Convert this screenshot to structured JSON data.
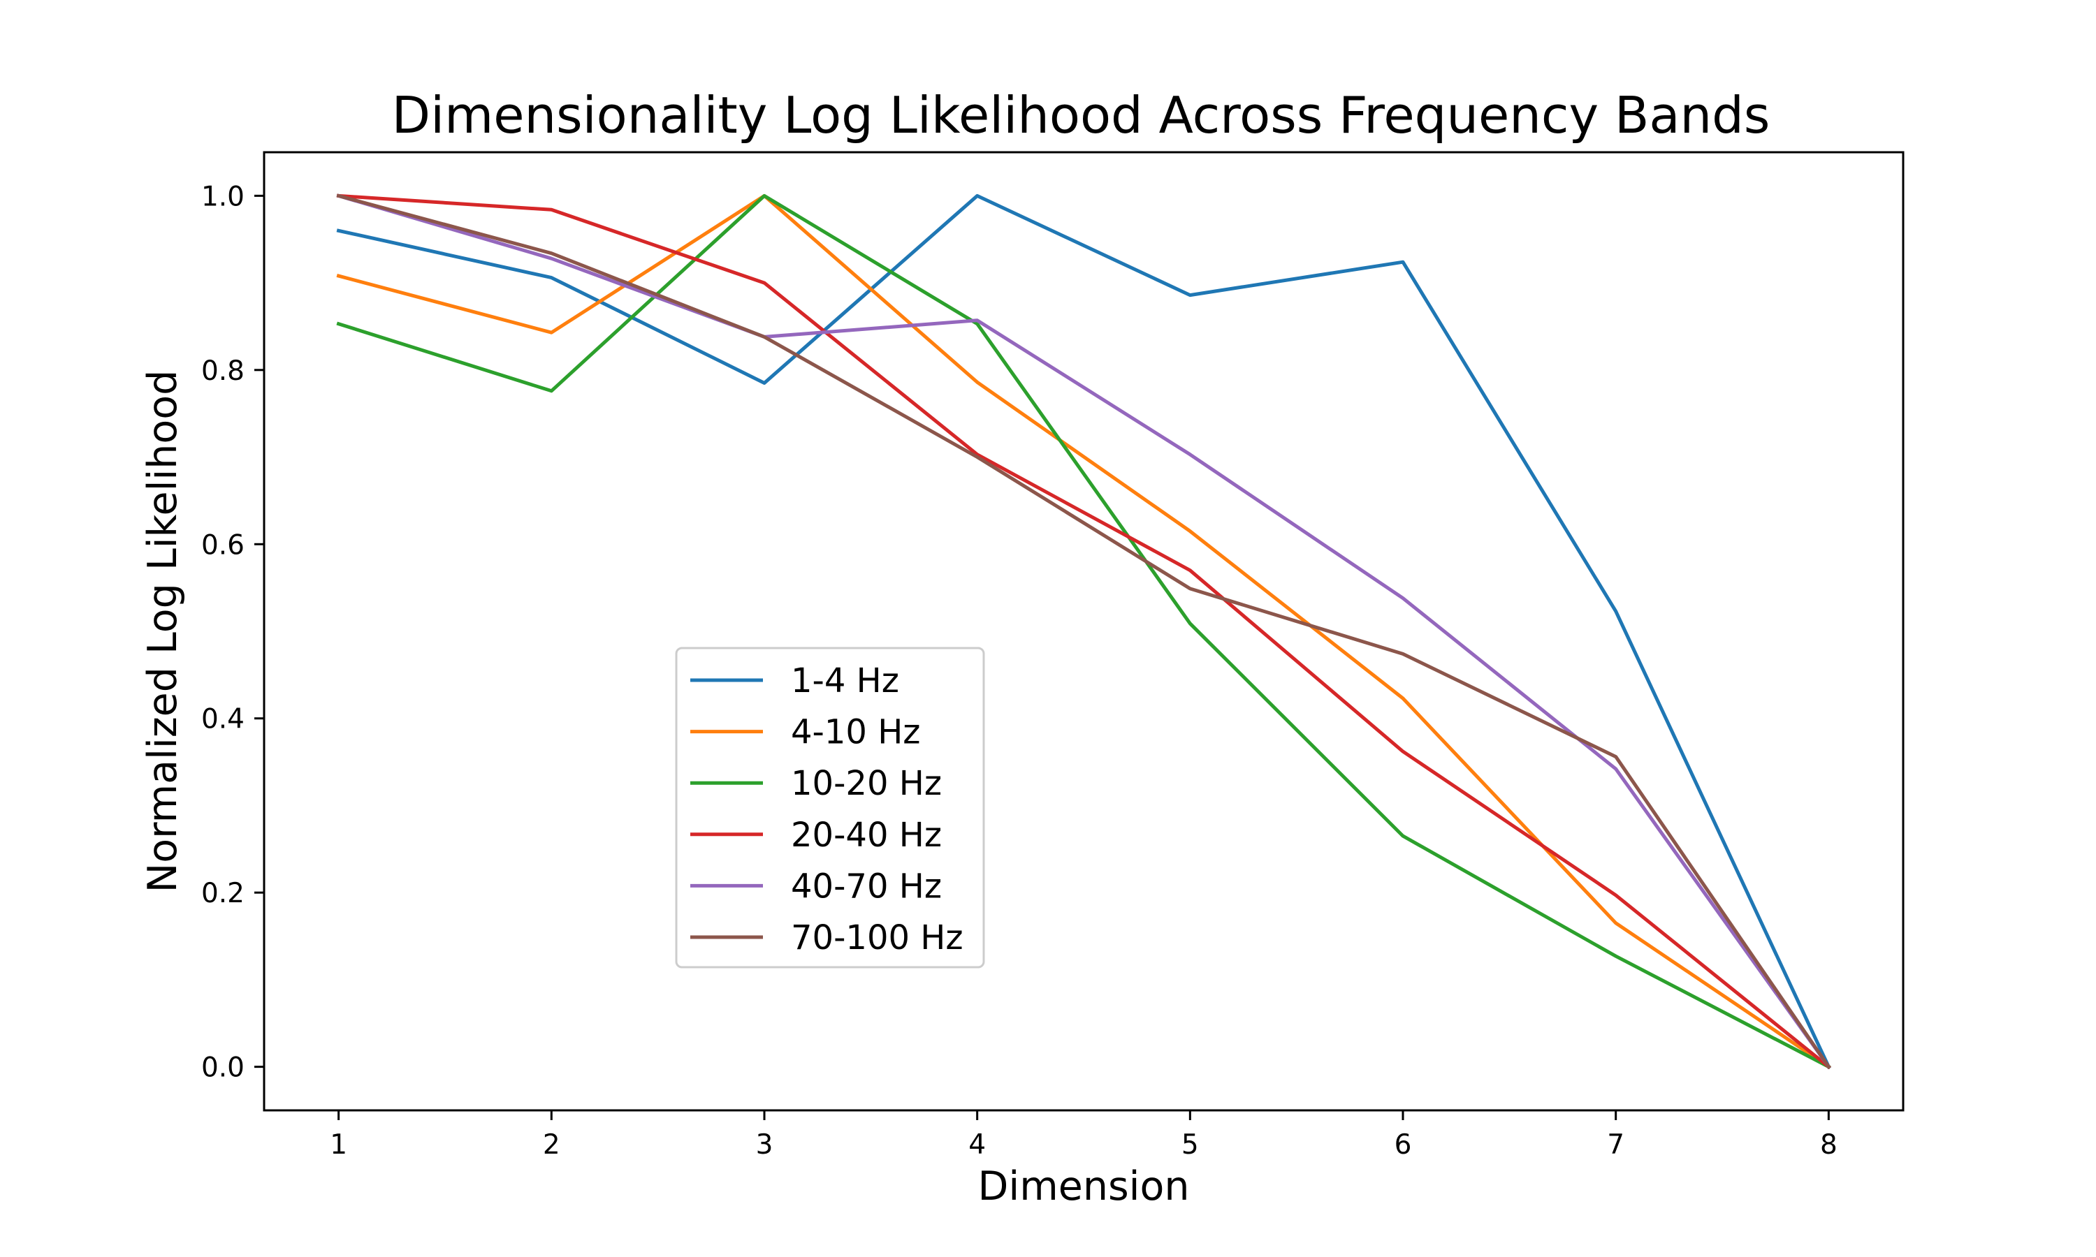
{
  "chart_data": {
    "type": "line",
    "title": "Dimensionality Log Likelihood Across Frequency Bands",
    "xlabel": "Dimension",
    "ylabel": "Normalized Log Likelihood",
    "x": [
      1,
      2,
      3,
      4,
      5,
      6,
      7,
      8
    ],
    "xlim": [
      0.65,
      8.35
    ],
    "ylim": [
      -0.05,
      1.05
    ],
    "xticks": [
      "1",
      "2",
      "3",
      "4",
      "5",
      "6",
      "7",
      "8"
    ],
    "yticks": [
      "0.0",
      "0.2",
      "0.4",
      "0.6",
      "0.8",
      "1.0"
    ],
    "grid": false,
    "legend_position": "center-left",
    "series": [
      {
        "name": "1-4 Hz",
        "color": "#1f77b4",
        "values": [
          0.96,
          0.906,
          0.785,
          1.0,
          0.886,
          0.924,
          0.523,
          0.0
        ]
      },
      {
        "name": "4-10 Hz",
        "color": "#ff7f0e",
        "values": [
          0.908,
          0.843,
          1.0,
          0.786,
          0.615,
          0.423,
          0.165,
          0.0
        ]
      },
      {
        "name": "10-20 Hz",
        "color": "#2ca02c",
        "values": [
          0.853,
          0.776,
          1.0,
          0.853,
          0.509,
          0.265,
          0.127,
          0.0
        ]
      },
      {
        "name": "20-40 Hz",
        "color": "#d62728",
        "values": [
          1.0,
          0.984,
          0.9,
          0.703,
          0.57,
          0.362,
          0.197,
          0.0
        ]
      },
      {
        "name": "40-70 Hz",
        "color": "#9467bd",
        "values": [
          1.0,
          0.928,
          0.838,
          0.857,
          0.703,
          0.538,
          0.342,
          0.0
        ]
      },
      {
        "name": "70-100 Hz",
        "color": "#8c564b",
        "values": [
          1.0,
          0.934,
          0.838,
          0.7,
          0.549,
          0.474,
          0.356,
          0.0
        ]
      }
    ]
  }
}
